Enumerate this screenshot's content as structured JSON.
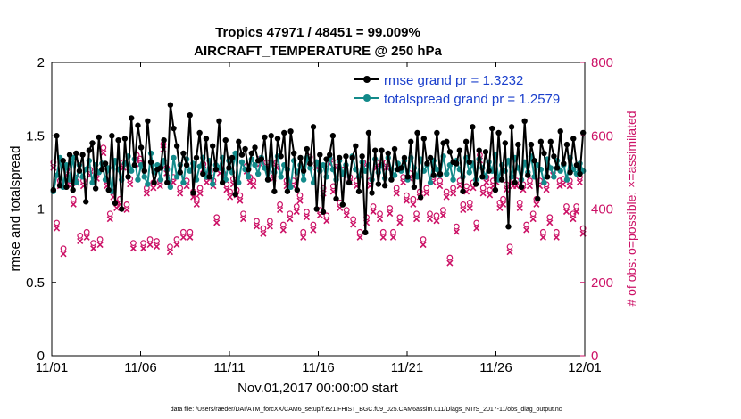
{
  "chart_data": {
    "type": "line",
    "title": "Tropics 47971 / 48451 = 99.009%",
    "subtitle": "AIRCRAFT_TEMPERATURE @ 250 hPa",
    "xlabel": "Nov.01,2017 00:00:00 start",
    "ylabel": "rmse and totalspread",
    "y2label": "# of obs: o=possible; ×=assimilated",
    "x_ticks": [
      "11/01",
      "11/06",
      "11/11",
      "11/16",
      "11/21",
      "11/26",
      "12/01"
    ],
    "x_range_days": [
      0,
      30
    ],
    "ylim": [
      0,
      2
    ],
    "y_ticks": [
      "0",
      "0.5",
      "1",
      "1.5",
      "2"
    ],
    "y2lim": [
      0,
      800
    ],
    "y2_ticks": [
      "0",
      "200",
      "400",
      "600",
      "800"
    ],
    "footnote": "data file: /Users/raeder/DAI/ATM_forcXX/CAM6_setup/f.e21.FHIST_BGC.f09_025.CAM6assim.011/Diags_NTrS_2017-11/obs_diag_output.nc",
    "colors": {
      "rmse": "#000000",
      "spread": "#138a8a",
      "obs": "#cc1166",
      "legend_text": "#1a3fcc"
    },
    "series": [
      {
        "name": "rmse grand pr = 1.3232",
        "color": "#000000",
        "values": [
          1.13,
          1.5,
          1.16,
          1.33,
          1.15,
          1.37,
          1.13,
          1.38,
          1.26,
          1.37,
          1.05,
          1.4,
          1.45,
          1.14,
          1.49,
          1.27,
          1.31,
          1.13,
          1.5,
          1.04,
          1.47,
          1.0,
          1.48,
          1.22,
          1.62,
          1.3,
          1.57,
          1.42,
          1.26,
          1.6,
          1.32,
          1.18,
          1.27,
          1.28,
          1.47,
          1.18,
          1.71,
          1.55,
          1.43,
          1.25,
          1.38,
          1.3,
          1.64,
          1.11,
          1.35,
          1.52,
          1.24,
          1.48,
          1.22,
          1.43,
          1.27,
          1.6,
          1.18,
          1.47,
          1.28,
          1.35,
          1.1,
          1.46,
          1.37,
          1.41,
          1.27,
          1.38,
          1.42,
          1.33,
          1.34,
          1.49,
          1.2,
          1.5,
          1.12,
          1.48,
          1.36,
          1.52,
          1.12,
          1.53,
          1.38,
          1.13,
          1.35,
          1.26,
          1.41,
          1.31,
          1.56,
          1.0,
          1.37,
          0.98,
          1.34,
          1.37,
          1.5,
          1.07,
          1.35,
          1.03,
          1.36,
          1.18,
          1.35,
          1.43,
          1.12,
          1.36,
          0.84,
          1.52,
          1.11,
          1.4,
          1.17,
          1.4,
          1.16,
          1.38,
          1.2,
          1.41,
          1.27,
          1.28,
          1.35,
          1.22,
          1.46,
          1.15,
          1.52,
          1.08,
          1.48,
          1.31,
          1.35,
          1.23,
          1.52,
          1.24,
          1.45,
          1.46,
          1.39,
          1.32,
          1.31,
          1.4,
          1.12,
          1.46,
          1.32,
          1.56,
          1.17,
          1.4,
          1.22,
          1.39,
          1.26,
          1.55,
          1.13,
          1.52,
          1.2,
          1.45,
          0.88,
          1.56,
          1.18,
          1.44,
          1.15,
          1.6,
          1.23,
          1.44,
          1.33,
          1.07,
          1.46,
          1.38,
          1.22,
          1.46,
          1.36,
          1.28,
          1.53,
          1.31,
          1.44,
          1.25,
          1.48,
          1.3,
          1.24,
          1.52
        ]
      },
      {
        "name": "totalspread grand pr = 1.2579",
        "color": "#138a8a",
        "values": [
          1.12,
          1.23,
          1.35,
          1.15,
          1.3,
          1.2,
          1.35,
          1.18,
          1.3,
          1.22,
          1.27,
          1.33,
          1.18,
          1.3,
          1.25,
          1.31,
          1.2,
          1.28,
          1.12,
          1.33,
          1.27,
          1.2,
          1.31,
          1.36,
          1.26,
          1.34,
          1.2,
          1.3,
          1.22,
          1.17,
          1.38,
          1.25,
          1.3,
          1.2,
          1.33,
          1.27,
          1.15,
          1.35,
          1.22,
          1.3,
          1.18,
          1.34,
          1.26,
          1.31,
          1.2,
          1.29,
          1.35,
          1.22,
          1.33,
          1.17,
          1.3,
          1.28,
          1.35,
          1.2,
          1.33,
          1.25,
          1.38,
          1.18,
          1.32,
          1.27,
          1.22,
          1.34,
          1.3,
          1.24,
          1.35,
          1.28,
          1.2,
          1.32,
          1.25,
          1.36,
          1.22,
          1.3,
          1.27,
          1.15,
          1.33,
          1.25,
          1.3,
          1.2,
          1.35,
          1.28,
          1.18,
          1.32,
          1.26,
          1.3,
          1.22,
          1.35,
          1.27,
          1.2,
          1.33,
          1.24,
          1.3,
          1.18,
          1.36,
          1.27,
          1.22,
          1.32,
          1.26,
          1.3,
          1.2,
          1.34,
          1.25,
          1.3,
          1.21,
          1.35,
          1.27,
          1.23,
          1.31,
          1.26,
          1.33,
          1.2,
          1.35,
          1.28,
          1.22,
          1.34,
          1.26,
          1.3,
          1.18,
          1.33,
          1.27,
          1.23,
          1.36,
          1.24,
          1.3,
          1.2,
          1.33,
          1.27,
          1.22,
          1.35,
          1.25,
          1.31,
          1.2,
          1.34,
          1.28,
          1.22,
          1.32,
          1.26,
          1.37,
          1.2,
          1.3,
          1.26,
          1.33,
          1.22,
          1.35,
          1.28,
          1.2,
          1.32,
          1.25,
          1.36,
          1.22,
          1.3,
          1.27,
          1.18,
          1.34,
          1.28,
          1.22,
          1.33,
          1.26,
          1.3,
          1.2,
          1.35,
          1.27,
          1.24,
          1.31,
          1.26
        ]
      },
      {
        "name": "# of obs possible / assimilated (right axis)",
        "color": "#cc1166",
        "axis": "right",
        "values": [
          520,
          355,
          470,
          285,
          500,
          470,
          420,
          478,
          320,
          470,
          330,
          500,
          300,
          490,
          310,
          560,
          470,
          380,
          440,
          410,
          420,
          520,
          405,
          475,
          300,
          540,
          530,
          300,
          450,
          310,
          465,
          305,
          470,
          570,
          505,
          290,
          480,
          310,
          450,
          330,
          470,
          330,
          440,
          420,
          450,
          515,
          480,
          495,
          470,
          370,
          505,
          490,
          460,
          440,
          475,
          445,
          430,
          380,
          510,
          480,
          470,
          360,
          530,
          340,
          520,
          360,
          490,
          520,
          405,
          350,
          470,
          380,
          470,
          400,
          430,
          330,
          385,
          535,
          350,
          520,
          390,
          450,
          375,
          530,
          455,
          520,
          410,
          500,
          390,
          480,
          365,
          470,
          330,
          520,
          370,
          470,
          400,
          520,
          380,
          330,
          520,
          395,
          330,
          450,
          370,
          480,
          430,
          490,
          420,
          380,
          440,
          310,
          450,
          380,
          480,
          375,
          470,
          390,
          440,
          260,
          450,
          345,
          470,
          405,
          455,
          410,
          465,
          355,
          540,
          450,
          480,
          445,
          470,
          480,
          410,
          420,
          460,
          290,
          470,
          470,
          410,
          460,
          350,
          470,
          380,
          420,
          470,
          330,
          460,
          370,
          500,
          330,
          470,
          475,
          400,
          470,
          380,
          400,
          480,
          340
        ]
      }
    ],
    "legend": [
      "rmse grand pr = 1.3232",
      "totalspread grand pr = 1.2579"
    ],
    "legend_position": "top-right"
  }
}
